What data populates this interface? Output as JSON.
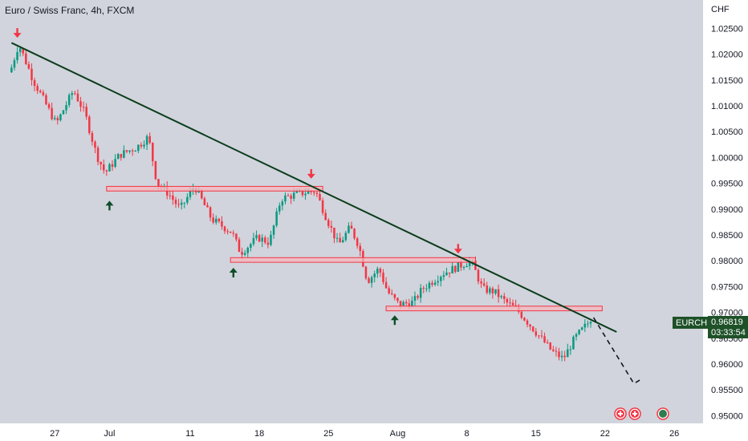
{
  "header": {
    "symbol_title": "Euro / Swiss Franc, 4h, FXCM",
    "currency": "CHF"
  },
  "price_tag": {
    "symbol": "EURCHF",
    "price": "0.96819",
    "countdown": "03:33:54"
  },
  "colors": {
    "background": "#ffffff",
    "chart_bg": "#d1d4dc",
    "up": "#089981",
    "down": "#f23645",
    "trendline": "#0b3d1c",
    "zone_fill": "#f6b7bd",
    "zone_border": "#f23645",
    "tag_bg": "#1e5128"
  },
  "chart_data": {
    "type": "candlestick",
    "title": "Euro / Swiss Franc, 4h, FXCM",
    "ylabel": "CHF",
    "ylim": [
      0.9485,
      1.0305
    ],
    "xlim": [
      -4,
      240
    ],
    "x_ticks": [
      {
        "x": 15,
        "label": "27"
      },
      {
        "x": 34,
        "label": "Jul"
      },
      {
        "x": 62,
        "label": "11"
      },
      {
        "x": 86,
        "label": "18"
      },
      {
        "x": 110,
        "label": "25"
      },
      {
        "x": 134,
        "label": "Aug"
      },
      {
        "x": 158,
        "label": "8"
      },
      {
        "x": 182,
        "label": "15"
      },
      {
        "x": 206,
        "label": "22"
      },
      {
        "x": 230,
        "label": "26"
      }
    ],
    "y_ticks": [
      "1.02500",
      "1.02000",
      "1.01500",
      "1.01000",
      "1.00500",
      "1.00000",
      "0.99500",
      "0.99000",
      "0.98500",
      "0.98000",
      "0.97500",
      "0.97000",
      "0.96500",
      "0.96000",
      "0.95500",
      "0.95000"
    ],
    "waypoints": [
      [
        0,
        1.0165
      ],
      [
        3,
        1.022
      ],
      [
        8,
        1.015
      ],
      [
        16,
        1.0065
      ],
      [
        22,
        1.013
      ],
      [
        26,
        1.0085
      ],
      [
        30,
        1.0005
      ],
      [
        33,
        0.997
      ],
      [
        38,
        1.0005
      ],
      [
        44,
        1.002
      ],
      [
        48,
        1.004
      ],
      [
        51,
        0.995
      ],
      [
        55,
        0.993
      ],
      [
        59,
        0.99
      ],
      [
        64,
        0.9945
      ],
      [
        70,
        0.988
      ],
      [
        77,
        0.9855
      ],
      [
        80,
        0.9815
      ],
      [
        86,
        0.9845
      ],
      [
        90,
        0.9835
      ],
      [
        94,
        0.992
      ],
      [
        100,
        0.993
      ],
      [
        106,
        0.9935
      ],
      [
        110,
        0.988
      ],
      [
        114,
        0.983
      ],
      [
        118,
        0.9865
      ],
      [
        121,
        0.983
      ],
      [
        124,
        0.976
      ],
      [
        128,
        0.9785
      ],
      [
        131,
        0.974
      ],
      [
        135,
        0.9715
      ],
      [
        140,
        0.972
      ],
      [
        143,
        0.9745
      ],
      [
        150,
        0.9775
      ],
      [
        156,
        0.979
      ],
      [
        160,
        0.98
      ],
      [
        164,
        0.9745
      ],
      [
        168,
        0.974
      ],
      [
        172,
        0.972
      ],
      [
        176,
        0.9705
      ],
      [
        182,
        0.9665
      ],
      [
        188,
        0.9625
      ],
      [
        192,
        0.961
      ],
      [
        196,
        0.965
      ],
      [
        201,
        0.9682
      ]
    ],
    "trendline": {
      "from": [
        0,
        1.0222
      ],
      "to": [
        210,
        0.9662
      ]
    },
    "projection": {
      "points": [
        [
          202,
          0.969
        ],
        [
          216,
          0.9562
        ],
        [
          219,
          0.9572
        ]
      ]
    },
    "zones": [
      {
        "x0": 33,
        "x1": 108,
        "low": 0.9935,
        "high": 0.9944
      },
      {
        "x0": 76,
        "x1": 161,
        "low": 0.9797,
        "high": 0.9806
      },
      {
        "x0": 130,
        "x1": 205,
        "low": 0.9703,
        "high": 0.9712
      }
    ],
    "down_arrows": [
      {
        "x": 2,
        "y": 1.0238
      },
      {
        "x": 104,
        "y": 0.9965
      },
      {
        "x": 155,
        "y": 0.982
      }
    ],
    "up_arrows": [
      {
        "x": 34,
        "y": 0.991
      },
      {
        "x": 77,
        "y": 0.978
      },
      {
        "x": 133,
        "y": 0.9688
      }
    ],
    "current_price": 0.96819
  }
}
